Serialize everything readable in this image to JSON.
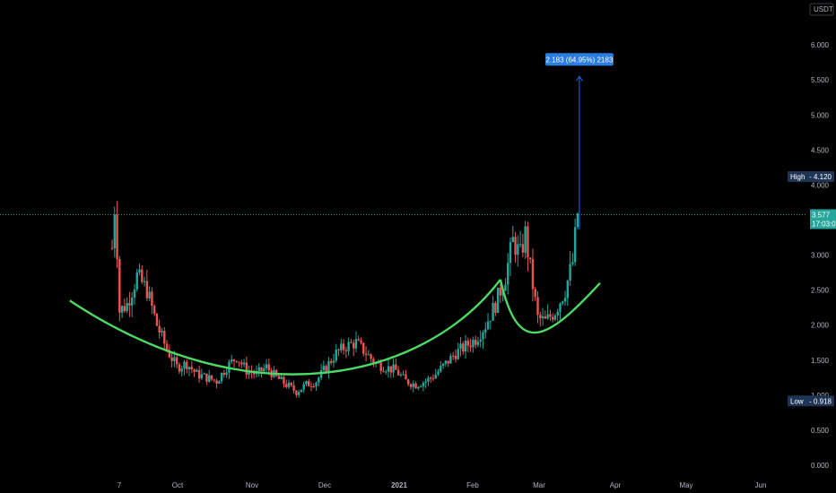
{
  "chart_data": {
    "type": "candlestick",
    "currency": "USDT",
    "y_axis": {
      "ticks": [
        "0.000",
        "0.500",
        "1.000",
        "1.500",
        "2.000",
        "2.500",
        "3.000",
        "3.500",
        "4.000",
        "4.500",
        "5.000",
        "5.500",
        "6.000"
      ],
      "tick_values": [
        0,
        0.5,
        1.0,
        1.5,
        2.0,
        2.5,
        3.0,
        3.5,
        4.0,
        4.5,
        5.0,
        5.5,
        6.0
      ],
      "range": [
        -0.05,
        6.6
      ]
    },
    "x_axis": {
      "ticks": [
        "7",
        "Oct",
        "Nov",
        "Dec",
        "2021",
        "Feb",
        "Mar",
        "Apr",
        "May",
        "Jun"
      ],
      "bold": [
        "2021"
      ]
    },
    "markers": {
      "high": {
        "label": "High",
        "value_text": "4.120",
        "value": 4.12
      },
      "low": {
        "label": "Low",
        "value_text": "0.918",
        "value": 0.918
      },
      "last": {
        "price": "3.577",
        "countdown": "17:03:0",
        "value": 3.577
      }
    },
    "measure": {
      "label": "2.183 (64.95%) 2183",
      "from": 3.36,
      "to": 5.55
    },
    "price_path": [
      [
        0,
        3.1
      ],
      [
        0.6,
        3.8
      ],
      [
        1.5,
        2.2
      ],
      [
        3,
        2.3
      ],
      [
        5,
        2.7
      ],
      [
        7,
        2.5
      ],
      [
        9,
        2.0
      ],
      [
        11,
        1.65
      ],
      [
        13,
        1.4
      ],
      [
        15,
        1.45
      ],
      [
        17,
        1.3
      ],
      [
        19,
        1.25
      ],
      [
        21,
        1.2
      ],
      [
        23,
        1.4
      ],
      [
        25,
        1.55
      ],
      [
        27,
        1.35
      ],
      [
        29,
        1.3
      ],
      [
        31,
        1.4
      ],
      [
        33,
        1.25
      ],
      [
        35,
        1.15
      ],
      [
        37,
        1.05
      ],
      [
        39,
        1.15
      ],
      [
        41,
        1.2
      ],
      [
        43,
        1.4
      ],
      [
        45,
        1.6
      ],
      [
        47,
        1.7
      ],
      [
        49,
        1.75
      ],
      [
        51,
        1.6
      ],
      [
        53,
        1.45
      ],
      [
        55,
        1.4
      ],
      [
        57,
        1.35
      ],
      [
        59,
        1.2
      ],
      [
        61,
        1.15
      ],
      [
        63,
        1.2
      ],
      [
        65,
        1.3
      ],
      [
        67,
        1.45
      ],
      [
        69,
        1.6
      ],
      [
        71,
        1.7
      ],
      [
        73,
        1.8
      ],
      [
        75,
        2.0
      ],
      [
        77,
        2.3
      ],
      [
        79,
        2.7
      ],
      [
        80.5,
        3.2
      ],
      [
        82,
        3.0
      ],
      [
        83,
        3.3
      ],
      [
        84,
        2.8
      ],
      [
        85.5,
        2.1
      ],
      [
        87,
        2.05
      ],
      [
        89,
        2.2
      ],
      [
        91,
        2.5
      ],
      [
        92.5,
        2.9
      ],
      [
        93.5,
        3.6
      ]
    ],
    "drawings": {
      "cup_curve": [
        [
          -8.5,
          2.35
        ],
        [
          27.5,
          0.65
        ],
        [
          62.5,
          1.2
        ],
        [
          78,
          2.65
        ]
      ],
      "handle_curve": [
        [
          78,
          2.65
        ],
        [
          81.5,
          1.55
        ],
        [
          87,
          1.75
        ],
        [
          98,
          2.6
        ]
      ]
    },
    "colors": {
      "up": "#26a69a",
      "down": "#ef5350",
      "curve": "#4cd964",
      "measure": "#2962ff",
      "last_price": "#26a69a",
      "background": "#000000"
    }
  }
}
